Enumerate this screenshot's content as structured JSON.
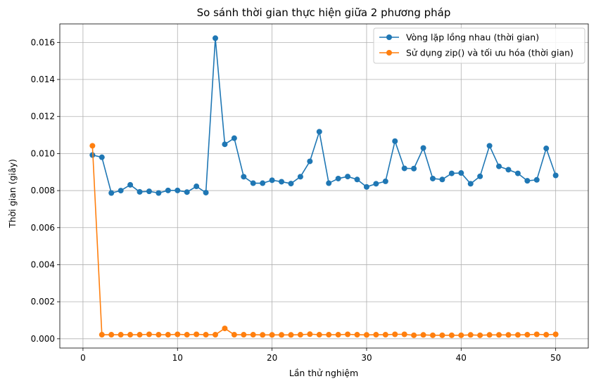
{
  "chart_data": {
    "type": "line",
    "title": "So sánh thời gian thực hiện giữa 2 phương pháp",
    "xlabel": "Lần thử nghiệm",
    "ylabel": "Thời gian (giây)",
    "xlim": [
      -2.45,
      53.45
    ],
    "ylim": [
      -0.0005,
      0.017
    ],
    "xticks": [
      0,
      10,
      20,
      30,
      40,
      50
    ],
    "yticks": [
      0.0,
      0.002,
      0.004,
      0.006,
      0.008,
      0.01,
      0.012,
      0.014,
      0.016
    ],
    "xtick_labels": [
      "0",
      "10",
      "20",
      "30",
      "40",
      "50"
    ],
    "ytick_labels": [
      "0.000",
      "0.002",
      "0.004",
      "0.006",
      "0.008",
      "0.010",
      "0.012",
      "0.014",
      "0.016"
    ],
    "grid": true,
    "legend_position": "top-right",
    "x": [
      1,
      2,
      3,
      4,
      5,
      6,
      7,
      8,
      9,
      10,
      11,
      12,
      13,
      14,
      15,
      16,
      17,
      18,
      19,
      20,
      21,
      22,
      23,
      24,
      25,
      26,
      27,
      28,
      29,
      30,
      31,
      32,
      33,
      34,
      35,
      36,
      37,
      38,
      39,
      40,
      41,
      42,
      43,
      44,
      45,
      46,
      47,
      48,
      49,
      50
    ],
    "series": [
      {
        "name": "Vòng lặp lồng nhau (thời gian)",
        "color": "#1f77b4",
        "values": [
          0.00992,
          0.0098,
          0.00787,
          0.008,
          0.00831,
          0.00793,
          0.00796,
          0.00787,
          0.00801,
          0.00801,
          0.00792,
          0.00823,
          0.00789,
          0.01623,
          0.0105,
          0.01083,
          0.00875,
          0.0084,
          0.0084,
          0.00856,
          0.00848,
          0.00838,
          0.00875,
          0.00958,
          0.01118,
          0.0084,
          0.00865,
          0.00876,
          0.0086,
          0.0082,
          0.00837,
          0.0085,
          0.01067,
          0.0092,
          0.00919,
          0.0103,
          0.00865,
          0.0086,
          0.00893,
          0.00895,
          0.00837,
          0.00877,
          0.01042,
          0.00931,
          0.00913,
          0.00893,
          0.00853,
          0.00858,
          0.01028,
          0.00882
        ]
      },
      {
        "name": "Sử dụng zip() và tối ưu hóa (thời gian)",
        "color": "#ff7f0e",
        "values": [
          0.01042,
          0.00022,
          0.00022,
          0.00022,
          0.00022,
          0.00022,
          0.00024,
          0.00022,
          0.00022,
          0.00024,
          0.00022,
          0.00024,
          0.00022,
          0.00022,
          0.00056,
          0.00022,
          0.00022,
          0.00022,
          0.00021,
          0.00021,
          0.00021,
          0.00021,
          0.00022,
          0.00025,
          0.00022,
          0.00022,
          0.00022,
          0.00024,
          0.00022,
          0.00021,
          0.00022,
          0.00022,
          0.00024,
          0.00024,
          0.00019,
          0.00021,
          0.00019,
          0.00019,
          0.00019,
          0.00019,
          0.00021,
          0.00019,
          0.00021,
          0.00021,
          0.00021,
          0.00021,
          0.00022,
          0.00024,
          0.00022,
          0.00024
        ]
      }
    ]
  }
}
